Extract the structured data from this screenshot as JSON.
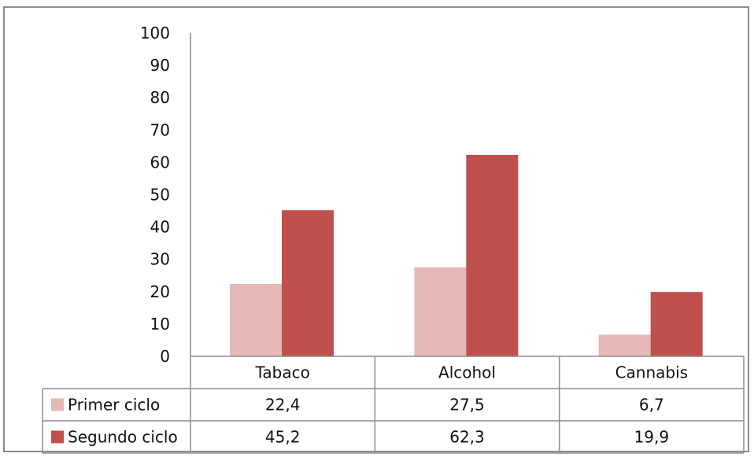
{
  "chart_data": {
    "type": "bar",
    "categories": [
      "Tabaco",
      "Alcohol",
      "Cannabis"
    ],
    "series": [
      {
        "name": "Primer ciclo",
        "values": [
          22.4,
          27.5,
          6.7
        ],
        "labels": [
          "22,4",
          "27,5",
          "6,7"
        ],
        "color": "#e6b9b8"
      },
      {
        "name": "Segundo ciclo",
        "values": [
          45.2,
          62.3,
          19.9
        ],
        "labels": [
          "45,2",
          "62,3",
          "19,9"
        ],
        "color": "#c0504d"
      }
    ],
    "ylim": [
      0,
      100
    ],
    "yticks": [
      0,
      10,
      20,
      30,
      40,
      50,
      60,
      70,
      80,
      90,
      100
    ],
    "grid": false,
    "data_table": true,
    "legend_placement": "in data table"
  }
}
